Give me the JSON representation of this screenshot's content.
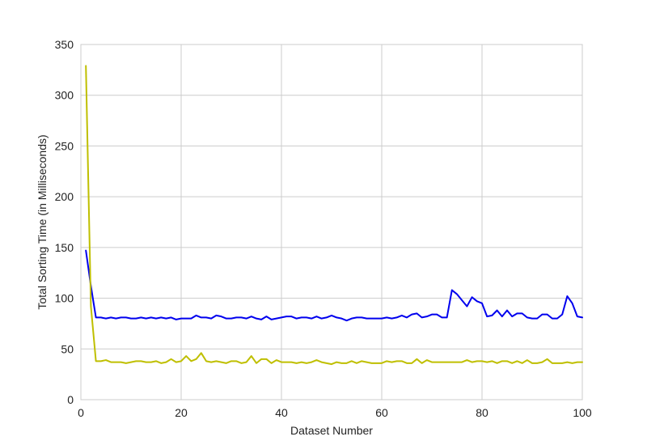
{
  "chart_data": {
    "type": "line",
    "title": "",
    "xlabel": "Dataset Number",
    "ylabel": "Total Sorting Time (in Milliseconds)",
    "xlim": [
      0,
      100
    ],
    "ylim": [
      0,
      350
    ],
    "xticks": [
      0,
      20,
      40,
      60,
      80,
      100
    ],
    "yticks": [
      0,
      50,
      100,
      150,
      200,
      250,
      300,
      350
    ],
    "grid": true,
    "x": [
      1,
      2,
      3,
      4,
      5,
      6,
      7,
      8,
      9,
      10,
      11,
      12,
      13,
      14,
      15,
      16,
      17,
      18,
      19,
      20,
      21,
      22,
      23,
      24,
      25,
      26,
      27,
      28,
      29,
      30,
      31,
      32,
      33,
      34,
      35,
      36,
      37,
      38,
      39,
      40,
      41,
      42,
      43,
      44,
      45,
      46,
      47,
      48,
      49,
      50,
      51,
      52,
      53,
      54,
      55,
      56,
      57,
      58,
      59,
      60,
      61,
      62,
      63,
      64,
      65,
      66,
      67,
      68,
      69,
      70,
      71,
      72,
      73,
      74,
      75,
      76,
      77,
      78,
      79,
      80,
      81,
      82,
      83,
      84,
      85,
      86,
      87,
      88,
      89,
      90,
      91,
      92,
      93,
      94,
      95,
      96,
      97,
      98,
      99,
      100
    ],
    "series": [
      {
        "color": "#0000ee",
        "values": [
          147,
          112,
          81,
          81,
          80,
          81,
          80,
          81,
          81,
          80,
          80,
          81,
          80,
          81,
          80,
          81,
          80,
          81,
          79,
          80,
          80,
          80,
          83,
          81,
          81,
          80,
          83,
          82,
          80,
          80,
          81,
          81,
          80,
          82,
          80,
          79,
          82,
          79,
          80,
          81,
          82,
          82,
          80,
          81,
          81,
          80,
          82,
          80,
          81,
          83,
          81,
          80,
          78,
          80,
          81,
          81,
          80,
          80,
          80,
          80,
          81,
          80,
          81,
          83,
          81,
          84,
          85,
          81,
          82,
          84,
          84,
          81,
          81,
          108,
          104,
          98,
          92,
          101,
          97,
          95,
          82,
          83,
          88,
          82,
          88,
          82,
          85,
          85,
          81,
          80,
          80,
          84,
          84,
          80,
          80,
          84,
          102,
          95,
          82,
          81
        ]
      },
      {
        "color": "#bfbf00",
        "values": [
          329,
          92,
          38,
          38,
          39,
          37,
          37,
          37,
          36,
          37,
          38,
          38,
          37,
          37,
          38,
          36,
          37,
          40,
          37,
          38,
          43,
          38,
          40,
          46,
          38,
          37,
          38,
          37,
          36,
          38,
          38,
          36,
          37,
          43,
          36,
          40,
          40,
          36,
          39,
          37,
          37,
          37,
          36,
          37,
          36,
          37,
          39,
          37,
          36,
          35,
          37,
          36,
          36,
          38,
          36,
          38,
          37,
          36,
          36,
          36,
          38,
          37,
          38,
          38,
          36,
          36,
          40,
          36,
          39,
          37,
          37,
          37,
          37,
          37,
          37,
          37,
          39,
          37,
          38,
          38,
          37,
          38,
          36,
          38,
          38,
          36,
          38,
          36,
          39,
          36,
          36,
          37,
          40,
          36,
          36,
          36,
          37,
          36,
          37,
          37
        ]
      }
    ]
  }
}
